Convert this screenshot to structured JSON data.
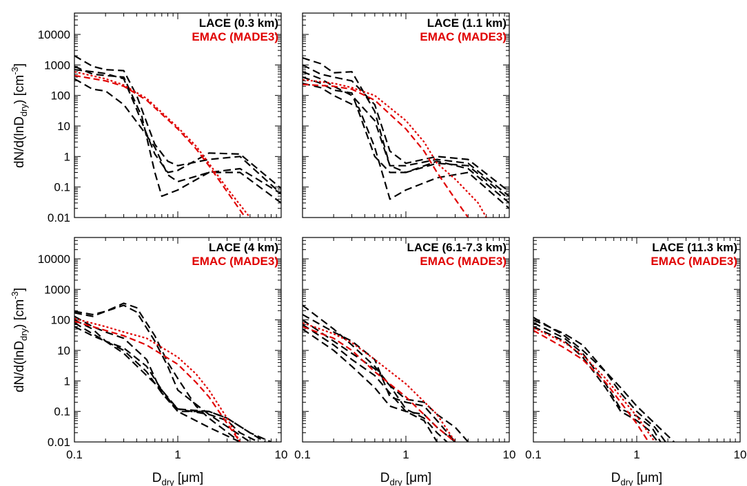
{
  "figure": {
    "ylabel": {
      "main": "dN/d(lnD",
      "sub": "dry",
      "close": ") [cm",
      "sup": "-3",
      "end": "]"
    },
    "xlabel": {
      "main": "D",
      "sub": "dry",
      "rest": " [μm]"
    },
    "legend_obs_color": "#000000",
    "legend_model_color": "#e00000",
    "obs_style": "long-dash",
    "model_styles": [
      "dash",
      "dot"
    ]
  },
  "chart_data": [
    {
      "type": "line",
      "scale": "log-log",
      "xlim": [
        0.1,
        10
      ],
      "ylim": [
        0.01,
        50000
      ],
      "legend": [
        "LACE (0.3 km)",
        "EMAC (MADE3)"
      ],
      "legend_placement": "top-right",
      "xticks": [
        "0.1",
        "1",
        "10"
      ],
      "yticks": [
        "0.01",
        "0.1",
        "1",
        "10",
        "100",
        "1000",
        "10000"
      ],
      "series": [
        {
          "group": "obs",
          "x": [
            0.1,
            0.15,
            0.2,
            0.3,
            0.4,
            0.6,
            0.8,
            1,
            2,
            4,
            10
          ],
          "y": [
            2000,
            900,
            700,
            650,
            100,
            2.5,
            0.7,
            0.5,
            0.8,
            1.0,
            0.06
          ]
        },
        {
          "group": "obs",
          "x": [
            0.1,
            0.15,
            0.2,
            0.3,
            0.4,
            0.6,
            0.8,
            1,
            2,
            4,
            10
          ],
          "y": [
            700,
            600,
            520,
            350,
            35,
            1.2,
            0.3,
            0.35,
            1.3,
            1.2,
            0.09
          ]
        },
        {
          "group": "obs",
          "x": [
            0.1,
            0.15,
            0.2,
            0.3,
            0.45,
            0.6,
            0.7,
            1,
            2,
            4,
            10
          ],
          "y": [
            900,
            500,
            450,
            400,
            20,
            0.3,
            0.05,
            0.08,
            0.3,
            0.3,
            0.03
          ]
        },
        {
          "group": "obs",
          "x": [
            0.1,
            0.15,
            0.2,
            0.3,
            0.45,
            0.6,
            0.8,
            1,
            2,
            4,
            10
          ],
          "y": [
            350,
            160,
            140,
            50,
            8,
            2,
            0.25,
            0.15,
            0.3,
            0.4,
            0.06
          ]
        },
        {
          "group": "model",
          "x": [
            0.1,
            0.2,
            0.3,
            0.5,
            1,
            1.5,
            2,
            3,
            4.5
          ],
          "y": [
            450,
            300,
            200,
            70,
            8,
            1.8,
            0.5,
            0.07,
            0.01
          ]
        },
        {
          "group": "model",
          "x": [
            0.1,
            0.2,
            0.3,
            0.5,
            1,
            1.5,
            2,
            3,
            5
          ],
          "y": [
            600,
            350,
            220,
            80,
            9,
            2.2,
            0.6,
            0.09,
            0.01
          ]
        }
      ]
    },
    {
      "type": "line",
      "scale": "log-log",
      "xlim": [
        0.1,
        10
      ],
      "ylim": [
        0.01,
        50000
      ],
      "legend": [
        "LACE (1.1 km)",
        "EMAC (MADE3)"
      ],
      "legend_placement": "top-right",
      "xticks": [
        "0.1",
        "1",
        "10"
      ],
      "yticks": [
        "0.01",
        "0.1",
        "1",
        "10",
        "100",
        "1000",
        "10000"
      ],
      "series": [
        {
          "group": "obs",
          "x": [
            0.1,
            0.15,
            0.2,
            0.3,
            0.5,
            0.7,
            1,
            2,
            4,
            10
          ],
          "y": [
            1700,
            1100,
            550,
            600,
            30,
            0.5,
            0.5,
            0.8,
            0.6,
            0.05
          ]
        },
        {
          "group": "obs",
          "x": [
            0.1,
            0.15,
            0.2,
            0.3,
            0.5,
            0.7,
            1,
            2,
            4,
            10
          ],
          "y": [
            1000,
            500,
            400,
            300,
            50,
            1.5,
            0.6,
            1.0,
            0.8,
            0.07
          ]
        },
        {
          "group": "obs",
          "x": [
            0.1,
            0.15,
            0.2,
            0.3,
            0.5,
            0.7,
            1,
            2,
            4,
            10
          ],
          "y": [
            600,
            350,
            200,
            100,
            15,
            0.5,
            0.3,
            0.6,
            0.5,
            0.04
          ]
        },
        {
          "group": "obs",
          "x": [
            0.1,
            0.15,
            0.2,
            0.3,
            0.5,
            0.7,
            1,
            2,
            4,
            10
          ],
          "y": [
            400,
            250,
            150,
            120,
            1.0,
            0.3,
            0.3,
            0.7,
            0.4,
            0.03
          ]
        },
        {
          "group": "obs",
          "x": [
            0.1,
            0.15,
            0.2,
            0.35,
            0.5,
            0.7,
            1,
            2,
            4,
            10
          ],
          "y": [
            250,
            180,
            100,
            40,
            2,
            0.04,
            0.08,
            0.2,
            0.3,
            0.02
          ]
        },
        {
          "group": "model",
          "x": [
            0.1,
            0.2,
            0.3,
            0.5,
            1,
            1.5,
            2,
            3,
            4
          ],
          "y": [
            230,
            200,
            160,
            70,
            8,
            1.5,
            0.3,
            0.04,
            0.01
          ]
        },
        {
          "group": "model",
          "x": [
            0.1,
            0.2,
            0.3,
            0.5,
            1,
            1.5,
            2,
            3,
            5,
            6
          ],
          "y": [
            330,
            250,
            180,
            100,
            15,
            3,
            0.6,
            0.18,
            0.03,
            0.01
          ]
        }
      ]
    },
    {
      "type": "line",
      "scale": "log-log",
      "xlim": [
        0.1,
        10
      ],
      "ylim": [
        0.01,
        50000
      ],
      "legend": [
        "LACE (4 km)",
        "EMAC (MADE3)"
      ],
      "legend_placement": "top-right",
      "xticks": [
        "0.1",
        "1",
        "10"
      ],
      "yticks": [
        "0.01",
        "0.1",
        "1",
        "10",
        "100",
        "1000",
        "10000"
      ],
      "series": [
        {
          "group": "obs",
          "x": [
            0.1,
            0.15,
            0.2,
            0.3,
            0.4,
            0.6,
            0.8,
            1,
            1.5,
            2,
            4
          ],
          "y": [
            190,
            150,
            190,
            350,
            250,
            30,
            4,
            1.2,
            0.15,
            0.06,
            0.01
          ]
        },
        {
          "group": "obs",
          "x": [
            0.1,
            0.15,
            0.2,
            0.3,
            0.4,
            0.6,
            0.8,
            1,
            2,
            5
          ],
          "y": [
            170,
            130,
            190,
            300,
            180,
            20,
            3,
            0.5,
            0.08,
            0.01
          ]
        },
        {
          "group": "obs",
          "x": [
            0.1,
            0.15,
            0.2,
            0.3,
            0.5,
            0.7,
            1,
            2,
            3,
            4,
            6
          ],
          "y": [
            130,
            60,
            40,
            25,
            5,
            0.4,
            0.12,
            0.08,
            0.05,
            0.02,
            0.01
          ]
        },
        {
          "group": "obs",
          "x": [
            0.1,
            0.15,
            0.2,
            0.3,
            0.5,
            0.7,
            1,
            2,
            3,
            5,
            7
          ],
          "y": [
            100,
            50,
            20,
            12,
            3,
            0.5,
            0.12,
            0.1,
            0.06,
            0.02,
            0.01
          ]
        },
        {
          "group": "obs",
          "x": [
            0.1,
            0.15,
            0.2,
            0.3,
            0.5,
            0.7,
            1,
            2,
            4
          ],
          "y": [
            80,
            35,
            20,
            8,
            1.5,
            0.5,
            0.1,
            0.03,
            0.01
          ]
        },
        {
          "group": "obs",
          "x": [
            0.1,
            0.15,
            0.2,
            0.3,
            0.5,
            0.7,
            1,
            2,
            3,
            5,
            8
          ],
          "y": [
            60,
            30,
            20,
            10,
            2,
            0.4,
            0.1,
            0.1,
            0.06,
            0.02,
            0.01
          ]
        },
        {
          "group": "model",
          "x": [
            0.1,
            0.2,
            0.3,
            0.5,
            1,
            1.5,
            2,
            3,
            4
          ],
          "y": [
            90,
            45,
            30,
            15,
            3.5,
            0.9,
            0.3,
            0.04,
            0.01
          ]
        },
        {
          "group": "model",
          "x": [
            0.1,
            0.2,
            0.3,
            0.5,
            1,
            1.5,
            2,
            3,
            4
          ],
          "y": [
            110,
            60,
            40,
            25,
            6,
            1.7,
            0.5,
            0.06,
            0.01
          ]
        }
      ]
    },
    {
      "type": "line",
      "scale": "log-log",
      "xlim": [
        0.1,
        10
      ],
      "ylim": [
        0.01,
        50000
      ],
      "legend": [
        "LACE (6.1-7.3 km)",
        "EMAC (MADE3)"
      ],
      "legend_placement": "top-right",
      "xticks": [
        "0.1",
        "1",
        "10"
      ],
      "yticks": [
        "0.01",
        "0.1",
        "1",
        "10",
        "100",
        "1000",
        "10000"
      ],
      "series": [
        {
          "group": "obs",
          "x": [
            0.1,
            0.2,
            0.3,
            0.5,
            0.7,
            1,
            1.5,
            2,
            3,
            4
          ],
          "y": [
            300,
            50,
            15,
            3,
            0.7,
            0.25,
            0.2,
            0.08,
            0.03,
            0.01
          ]
        },
        {
          "group": "obs",
          "x": [
            0.1,
            0.2,
            0.3,
            0.5,
            0.7,
            1,
            1.5,
            2,
            3
          ],
          "y": [
            150,
            40,
            20,
            5,
            0.3,
            0.2,
            0.15,
            0.05,
            0.01
          ]
        },
        {
          "group": "obs",
          "x": [
            0.1,
            0.2,
            0.3,
            0.5,
            0.7,
            1,
            1.5,
            2,
            2.5
          ],
          "y": [
            100,
            20,
            8,
            2.5,
            0.7,
            0.12,
            0.06,
            0.02,
            0.01
          ]
        },
        {
          "group": "obs",
          "x": [
            0.1,
            0.2,
            0.3,
            0.5,
            0.7,
            1,
            1.5,
            2
          ],
          "y": [
            70,
            15,
            5,
            1.5,
            0.4,
            0.1,
            0.05,
            0.01
          ]
        },
        {
          "group": "obs",
          "x": [
            0.1,
            0.2,
            0.3,
            0.5,
            0.7,
            1,
            1.5,
            2,
            3
          ],
          "y": [
            50,
            10,
            3,
            0.6,
            0.15,
            0.1,
            0.08,
            0.03,
            0.01
          ]
        },
        {
          "group": "model",
          "x": [
            0.1,
            0.2,
            0.3,
            0.5,
            1,
            2,
            3
          ],
          "y": [
            60,
            25,
            10,
            2,
            0.3,
            0.03,
            0.01
          ]
        },
        {
          "group": "model",
          "x": [
            0.1,
            0.2,
            0.3,
            0.5,
            1,
            2,
            3
          ],
          "y": [
            80,
            35,
            18,
            5,
            0.8,
            0.08,
            0.01
          ]
        }
      ]
    },
    {
      "type": "line",
      "scale": "log-log",
      "xlim": [
        0.1,
        10
      ],
      "ylim": [
        0.01,
        50000
      ],
      "legend": [
        "LACE (11.3 km)",
        "EMAC (MADE3)"
      ],
      "legend_placement": "top-right",
      "xticks": [
        "0.1",
        "1",
        "10"
      ],
      "yticks": [
        "0.01",
        "0.1",
        "1",
        "10",
        "100",
        "1000",
        "10000"
      ],
      "series": [
        {
          "group": "obs",
          "x": [
            0.1,
            0.2,
            0.3,
            0.5,
            0.7,
            1,
            1.5,
            2.3
          ],
          "y": [
            120,
            30,
            10,
            2,
            0.6,
            0.15,
            0.04,
            0.01
          ]
        },
        {
          "group": "obs",
          "x": [
            0.1,
            0.2,
            0.3,
            0.5,
            0.7,
            1,
            1.5,
            1.9
          ],
          "y": [
            100,
            35,
            15,
            2,
            0.4,
            0.1,
            0.03,
            0.01
          ]
        },
        {
          "group": "obs",
          "x": [
            0.1,
            0.2,
            0.3,
            0.5,
            0.7,
            1,
            1.4,
            1.7
          ],
          "y": [
            80,
            25,
            8,
            0.8,
            0.12,
            0.07,
            0.03,
            0.01
          ]
        },
        {
          "group": "obs",
          "x": [
            0.1,
            0.2,
            0.3,
            0.5,
            0.7,
            1,
            1.3,
            1.6
          ],
          "y": [
            60,
            20,
            6,
            0.6,
            0.1,
            0.05,
            0.025,
            0.01
          ]
        },
        {
          "group": "model",
          "x": [
            0.1,
            0.2,
            0.3,
            0.5,
            1,
            1.3
          ],
          "y": [
            45,
            12,
            5,
            0.9,
            0.04,
            0.01
          ]
        },
        {
          "group": "model",
          "x": [
            0.1,
            0.2,
            0.3,
            0.5,
            1,
            1.5
          ],
          "y": [
            55,
            18,
            7,
            1.2,
            0.07,
            0.01
          ]
        }
      ]
    }
  ]
}
